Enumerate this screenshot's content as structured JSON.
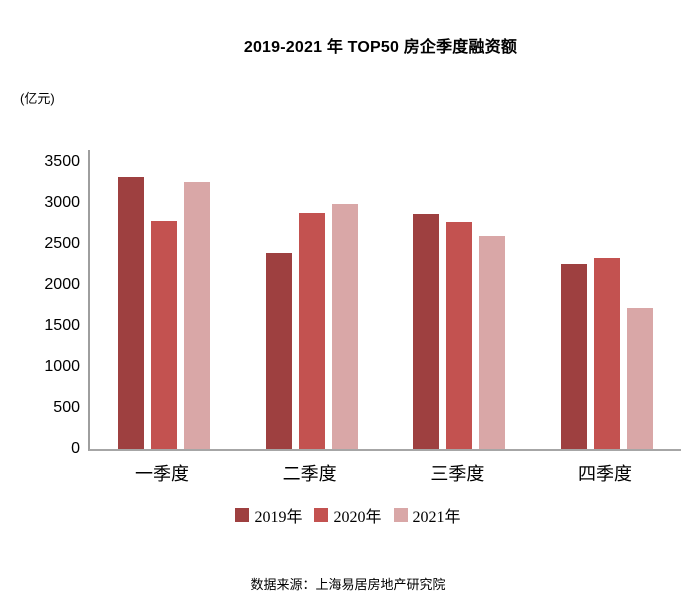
{
  "title": "2019-2021 年 TOP50 房企季度融资额",
  "unit_label": "(亿元)",
  "source": "数据来源：上海易居房地产研究院",
  "colors": {
    "series_2019": "#9E4040",
    "series_2020": "#C35250",
    "series_2021": "#D9A7A7",
    "axis_line": "#A6A6A6"
  },
  "chart_data": {
    "type": "bar",
    "title": "2019-2021 年 TOP50 房企季度融资额",
    "ylabel": "(亿元)",
    "xlabel": "",
    "categories": [
      "一季度",
      "二季度",
      "三季度",
      "四季度"
    ],
    "series": [
      {
        "name": "2019年",
        "color": "#9E4040",
        "values": [
          3320,
          2390,
          2870,
          2260
        ]
      },
      {
        "name": "2020年",
        "color": "#C35250",
        "values": [
          2780,
          2880,
          2770,
          2330
        ]
      },
      {
        "name": "2021年",
        "color": "#D9A7A7",
        "values": [
          3260,
          2990,
          2600,
          1720
        ]
      }
    ],
    "ylim": [
      0,
      3500
    ],
    "yticks": [
      0,
      500,
      1000,
      1500,
      2000,
      2500,
      3000,
      3500
    ],
    "grid": false,
    "legend_position": "bottom"
  }
}
